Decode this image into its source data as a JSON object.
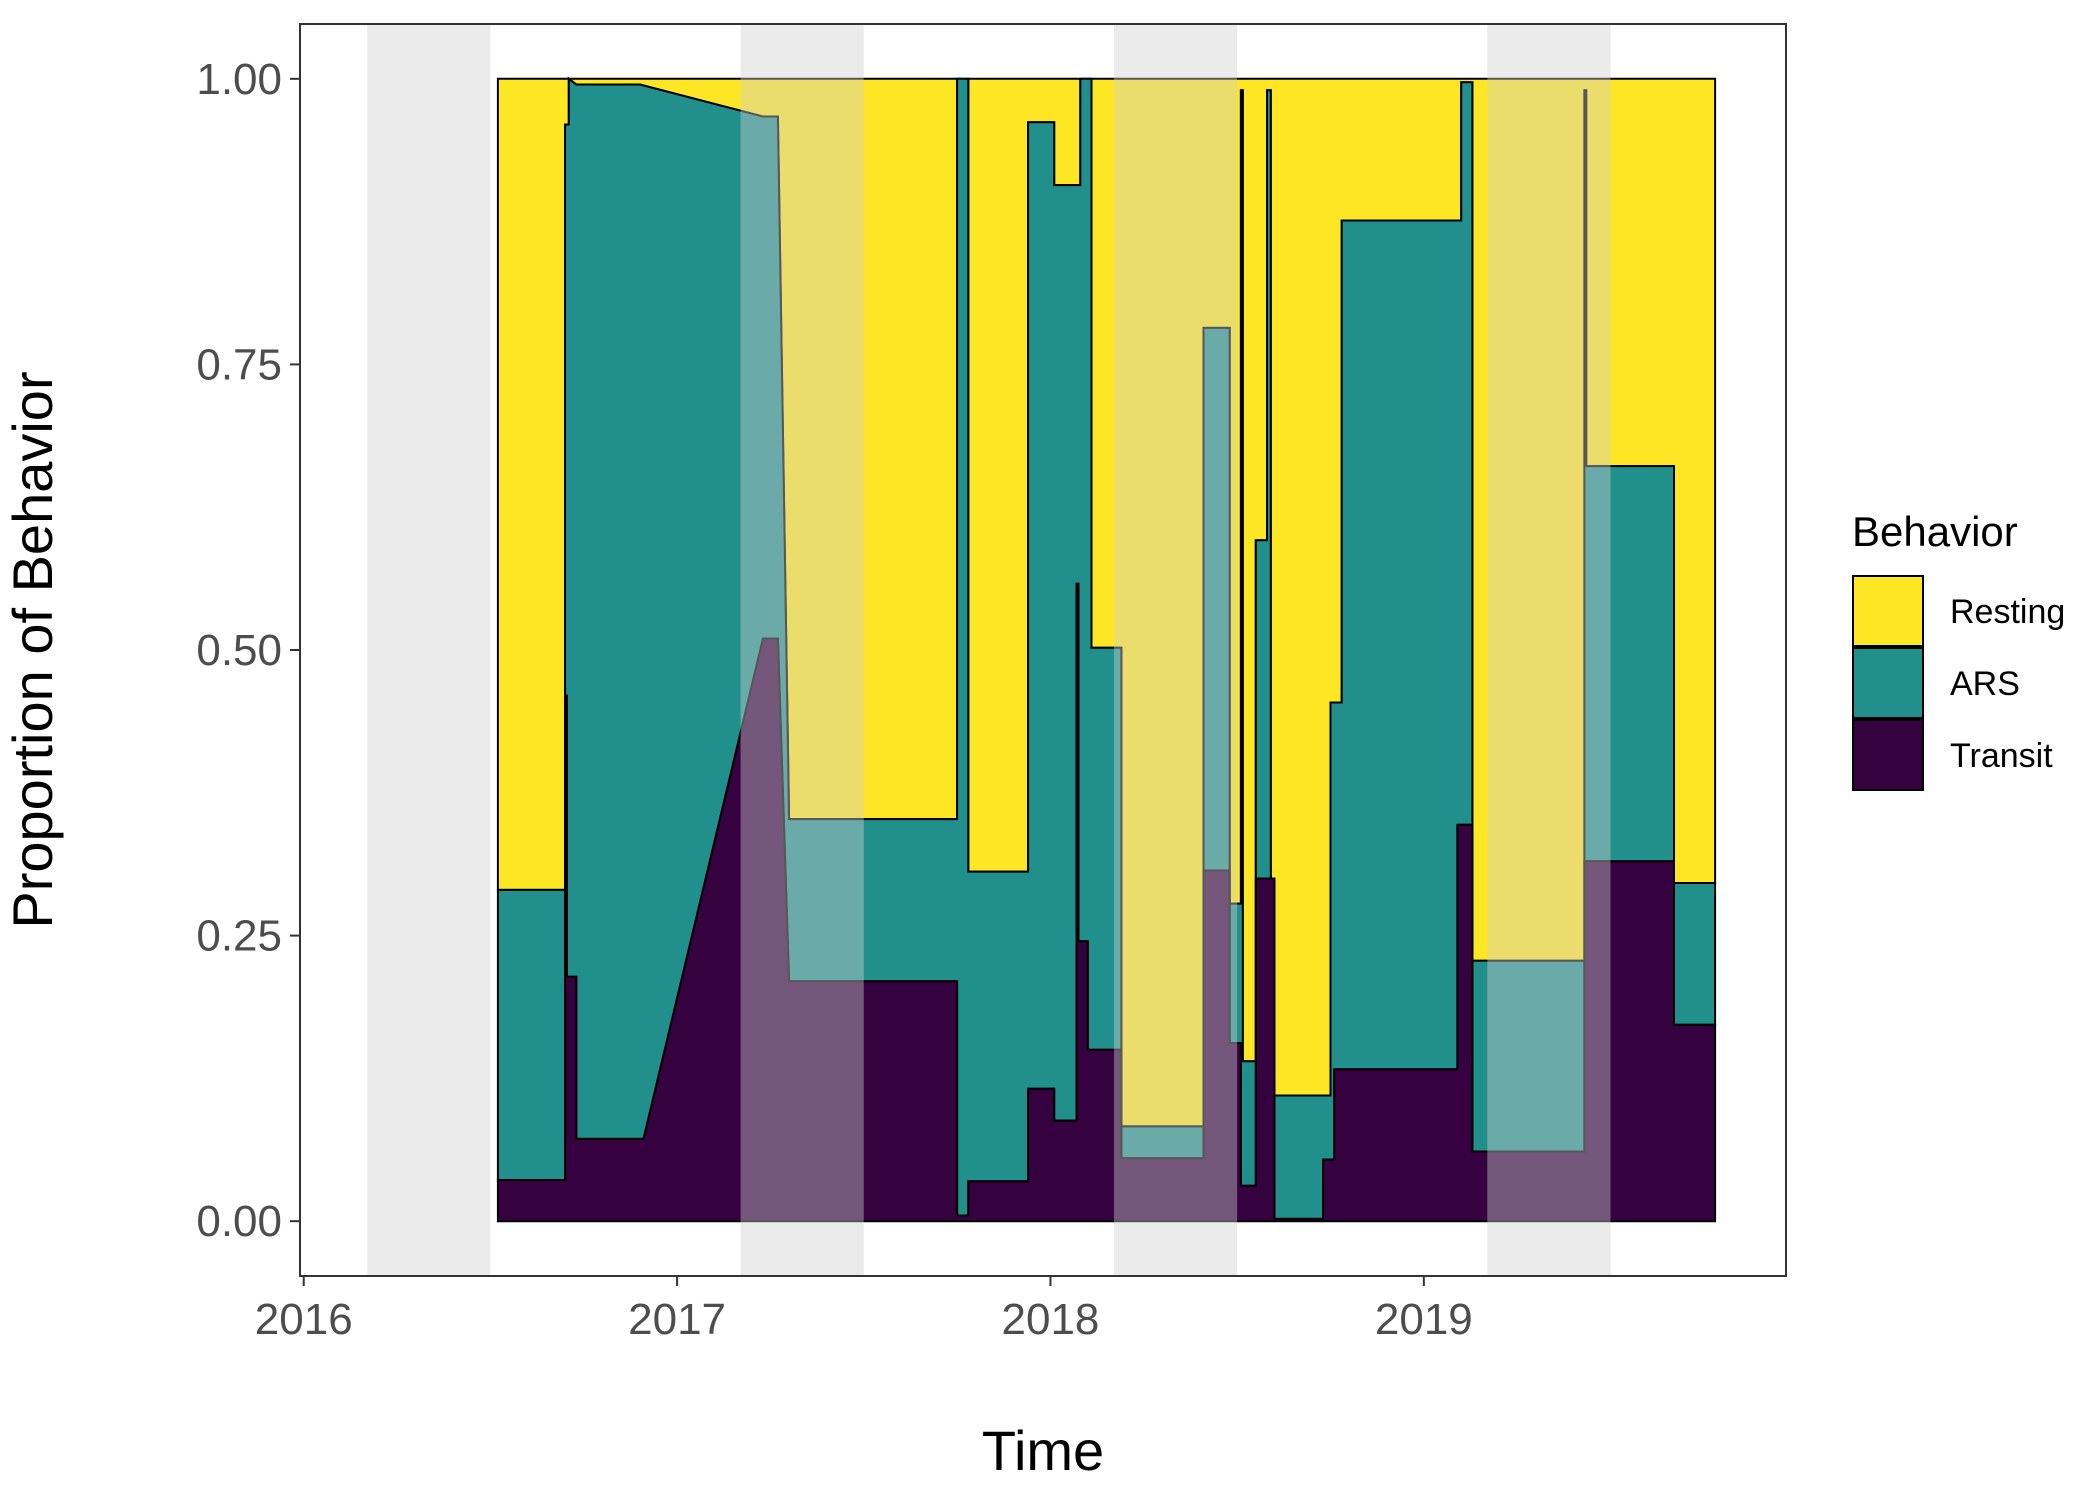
{
  "chart_data": {
    "type": "area",
    "xlabel": "Time",
    "ylabel": "Proportion of Behavior",
    "xlim": [
      2015.99,
      2019.97
    ],
    "ylim": [
      -0.048,
      1.048
    ],
    "x_ticks": [
      2016,
      2017,
      2018,
      2019
    ],
    "x_tick_labels": [
      "2016",
      "2017",
      "2018",
      "2019"
    ],
    "y_ticks": [
      0,
      0.25,
      0.5,
      0.75,
      1
    ],
    "y_tick_labels": [
      "0.00",
      "0.25",
      "0.50",
      "0.75",
      "1.00"
    ],
    "grid": false,
    "legend": {
      "title": "Behavior",
      "position": "right",
      "entries": [
        "Resting",
        "ARS",
        "Transit"
      ]
    },
    "shaded_periods": [
      [
        2016.17,
        2016.5
      ],
      [
        2017.17,
        2017.5
      ],
      [
        2018.17,
        2018.5
      ],
      [
        2019.17,
        2019.5
      ]
    ],
    "series": [
      {
        "name": "Resting",
        "color": "#FDE725",
        "upper": [
          [
            2016.52,
            1
          ],
          [
            2019.78,
            1
          ]
        ],
        "lower": [
          [
            2016.52,
            0.29
          ],
          [
            2016.7,
            0.29
          ],
          [
            2016.7,
            0.96
          ],
          [
            2016.71,
            0.96
          ],
          [
            2016.71,
            1.0
          ],
          [
            2016.73,
            0.995
          ],
          [
            2016.9,
            0.995
          ],
          [
            2017.23,
            0.967
          ],
          [
            2017.27,
            0.967
          ],
          [
            2017.3,
            0.352
          ],
          [
            2017.75,
            0.352
          ],
          [
            2017.75,
            1.0
          ],
          [
            2017.78,
            1.0
          ],
          [
            2017.78,
            0.306
          ],
          [
            2017.94,
            0.306
          ],
          [
            2017.94,
            0.962
          ],
          [
            2018.01,
            0.962
          ],
          [
            2018.01,
            0.907
          ],
          [
            2018.08,
            0.907
          ],
          [
            2018.08,
            1.0
          ],
          [
            2018.11,
            1.0
          ],
          [
            2018.11,
            0.502
          ],
          [
            2018.19,
            0.502
          ],
          [
            2018.19,
            0.083
          ],
          [
            2018.41,
            0.083
          ],
          [
            2018.41,
            0.782
          ],
          [
            2018.48,
            0.782
          ],
          [
            2018.48,
            0.278
          ],
          [
            2018.51,
            0.278
          ],
          [
            2018.51,
            0.99
          ],
          [
            2018.515,
            0.99
          ],
          [
            2018.515,
            0.14
          ],
          [
            2018.55,
            0.14
          ],
          [
            2018.55,
            0.596
          ],
          [
            2018.58,
            0.596
          ],
          [
            2018.58,
            0.99
          ],
          [
            2018.59,
            0.99
          ],
          [
            2018.59,
            0.11
          ],
          [
            2018.75,
            0.11
          ],
          [
            2018.75,
            0.454
          ],
          [
            2018.78,
            0.454
          ],
          [
            2018.78,
            0.876
          ],
          [
            2019.1,
            0.876
          ],
          [
            2019.1,
            0.997
          ],
          [
            2019.13,
            0.997
          ],
          [
            2019.13,
            0.228
          ],
          [
            2019.43,
            0.228
          ],
          [
            2019.43,
            0.99
          ],
          [
            2019.435,
            0.99
          ],
          [
            2019.435,
            0.661
          ],
          [
            2019.67,
            0.661
          ],
          [
            2019.67,
            0.296
          ],
          [
            2019.78,
            0.296
          ]
        ]
      },
      {
        "name": "ARS",
        "color": "#21908C",
        "lower": [
          [
            2016.52,
            0.036
          ],
          [
            2016.7,
            0.036
          ],
          [
            2016.7,
            0.46
          ],
          [
            2016.705,
            0.46
          ],
          [
            2016.705,
            0.214
          ],
          [
            2016.73,
            0.214
          ],
          [
            2016.73,
            0.072
          ],
          [
            2016.91,
            0.072
          ],
          [
            2017.23,
            0.51
          ],
          [
            2017.27,
            0.51
          ],
          [
            2017.3,
            0.21
          ],
          [
            2017.75,
            0.21
          ],
          [
            2017.75,
            0.005
          ],
          [
            2017.78,
            0.005
          ],
          [
            2017.78,
            0.035
          ],
          [
            2017.94,
            0.035
          ],
          [
            2017.94,
            0.116
          ],
          [
            2018.01,
            0.116
          ],
          [
            2018.01,
            0.088
          ],
          [
            2018.07,
            0.088
          ],
          [
            2018.07,
            0.558
          ],
          [
            2018.075,
            0.558
          ],
          [
            2018.075,
            0.245
          ],
          [
            2018.1,
            0.245
          ],
          [
            2018.1,
            0.15
          ],
          [
            2018.19,
            0.15
          ],
          [
            2018.19,
            0.055
          ],
          [
            2018.41,
            0.055
          ],
          [
            2018.41,
            0.307
          ],
          [
            2018.48,
            0.307
          ],
          [
            2018.48,
            0.156
          ],
          [
            2018.51,
            0.156
          ],
          [
            2018.51,
            0.031
          ],
          [
            2018.55,
            0.031
          ],
          [
            2018.55,
            0.3
          ],
          [
            2018.6,
            0.3
          ],
          [
            2018.6,
            0.002
          ],
          [
            2018.73,
            0.002
          ],
          [
            2018.73,
            0.054
          ],
          [
            2018.76,
            0.054
          ],
          [
            2018.76,
            0.133
          ],
          [
            2019.09,
            0.133
          ],
          [
            2019.09,
            0.347
          ],
          [
            2019.13,
            0.347
          ],
          [
            2019.13,
            0.061
          ],
          [
            2019.43,
            0.061
          ],
          [
            2019.43,
            0.315
          ],
          [
            2019.67,
            0.315
          ],
          [
            2019.67,
            0.172
          ],
          [
            2019.78,
            0.172
          ]
        ]
      },
      {
        "name": "Transit",
        "color": "#35013F",
        "lower": [
          [
            2016.52,
            0
          ],
          [
            2019.78,
            0
          ]
        ]
      }
    ]
  }
}
